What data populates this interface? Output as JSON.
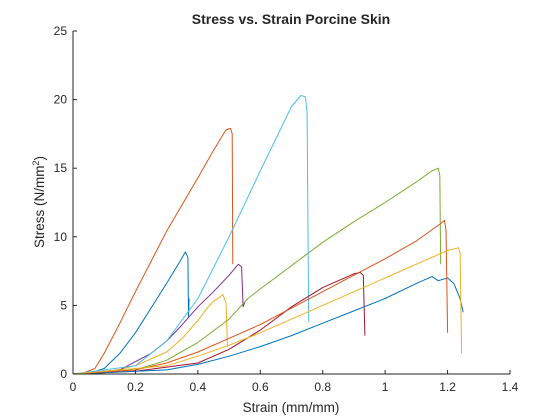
{
  "chart_data": {
    "type": "line",
    "title": "Stress vs. Strain Porcine Skin",
    "xlabel": "Strain (mm/mm)",
    "ylabel": "Stress (N/mm²)",
    "ylabel_parts": {
      "base": "Stress (N/mm",
      "sup": "2",
      "tail": ")"
    },
    "xlim": [
      0,
      1.4
    ],
    "ylim": [
      0,
      25
    ],
    "x_ticks": [
      "0",
      "0.2",
      "0.4",
      "0.6",
      "0.8",
      "1",
      "1.2",
      "1.4"
    ],
    "y_ticks": [
      "0",
      "5",
      "10",
      "15",
      "20",
      "25"
    ],
    "grid": false,
    "series": [
      {
        "color": "#0072BD",
        "points": [
          [
            0,
            0
          ],
          [
            0.05,
            0.05
          ],
          [
            0.1,
            0.4
          ],
          [
            0.15,
            1.5
          ],
          [
            0.2,
            3.0
          ],
          [
            0.25,
            4.8
          ],
          [
            0.3,
            6.6
          ],
          [
            0.34,
            8.1
          ],
          [
            0.36,
            8.9
          ],
          [
            0.368,
            8.5
          ],
          [
            0.37,
            4.2
          ],
          [
            0.372,
            5.5
          ]
        ]
      },
      {
        "color": "#D95319",
        "points": [
          [
            0,
            0
          ],
          [
            0.03,
            0.05
          ],
          [
            0.07,
            0.4
          ],
          [
            0.1,
            1.5
          ],
          [
            0.15,
            3.7
          ],
          [
            0.2,
            6.0
          ],
          [
            0.3,
            10.4
          ],
          [
            0.4,
            14.3
          ],
          [
            0.45,
            16.3
          ],
          [
            0.49,
            17.8
          ],
          [
            0.505,
            17.9
          ],
          [
            0.51,
            17.5
          ],
          [
            0.512,
            8.0
          ]
        ]
      },
      {
        "color": "#EDB120",
        "points": [
          [
            0,
            0
          ],
          [
            0.1,
            0.1
          ],
          [
            0.2,
            0.6
          ],
          [
            0.3,
            1.6
          ],
          [
            0.35,
            2.6
          ],
          [
            0.4,
            3.9
          ],
          [
            0.43,
            4.8
          ],
          [
            0.45,
            5.3
          ],
          [
            0.47,
            5.6
          ],
          [
            0.48,
            5.8
          ],
          [
            0.49,
            5.2
          ],
          [
            0.495,
            2.0
          ]
        ]
      },
      {
        "color": "#7E2F8E",
        "points": [
          [
            0,
            0
          ],
          [
            0.15,
            0.3
          ],
          [
            0.25,
            1.5
          ],
          [
            0.3,
            2.4
          ],
          [
            0.35,
            3.6
          ],
          [
            0.4,
            4.9
          ],
          [
            0.45,
            6.0
          ],
          [
            0.5,
            7.2
          ],
          [
            0.53,
            8.0
          ],
          [
            0.54,
            7.8
          ],
          [
            0.545,
            4.9
          ],
          [
            0.55,
            5.2
          ]
        ]
      },
      {
        "color": "#77AC30",
        "points": [
          [
            0,
            0
          ],
          [
            0.2,
            0.3
          ],
          [
            0.3,
            1.0
          ],
          [
            0.4,
            2.3
          ],
          [
            0.5,
            4.0
          ],
          [
            0.56,
            5.5
          ],
          [
            0.6,
            6.2
          ],
          [
            0.7,
            7.9
          ],
          [
            0.8,
            9.6
          ],
          [
            0.9,
            11.1
          ],
          [
            1.0,
            12.5
          ],
          [
            1.1,
            14.0
          ],
          [
            1.15,
            14.8
          ],
          [
            1.17,
            15.0
          ],
          [
            1.175,
            14.5
          ],
          [
            1.178,
            8.0
          ]
        ]
      },
      {
        "color": "#4DBEEE",
        "points": [
          [
            0,
            0
          ],
          [
            0.2,
            0.6
          ],
          [
            0.3,
            2.4
          ],
          [
            0.4,
            5.5
          ],
          [
            0.5,
            10.0
          ],
          [
            0.6,
            14.8
          ],
          [
            0.7,
            19.5
          ],
          [
            0.73,
            20.3
          ],
          [
            0.745,
            20.2
          ],
          [
            0.75,
            19.0
          ],
          [
            0.755,
            3.8
          ]
        ]
      },
      {
        "color": "#A2142F",
        "points": [
          [
            0,
            0
          ],
          [
            0.2,
            0.2
          ],
          [
            0.4,
            0.8
          ],
          [
            0.5,
            1.8
          ],
          [
            0.6,
            3.2
          ],
          [
            0.7,
            4.9
          ],
          [
            0.8,
            6.3
          ],
          [
            0.9,
            7.3
          ],
          [
            0.92,
            7.4
          ],
          [
            0.93,
            7.2
          ],
          [
            0.935,
            2.8
          ]
        ]
      },
      {
        "color": "#0072BD",
        "points": [
          [
            0,
            0
          ],
          [
            0.3,
            0.3
          ],
          [
            0.4,
            0.7
          ],
          [
            0.5,
            1.3
          ],
          [
            0.6,
            2.0
          ],
          [
            0.7,
            2.8
          ],
          [
            0.8,
            3.7
          ],
          [
            0.9,
            4.6
          ],
          [
            1.0,
            5.5
          ],
          [
            1.1,
            6.6
          ],
          [
            1.15,
            7.1
          ],
          [
            1.17,
            6.8
          ],
          [
            1.2,
            7.0
          ],
          [
            1.22,
            6.6
          ],
          [
            1.24,
            5.5
          ],
          [
            1.25,
            4.5
          ]
        ]
      },
      {
        "color": "#D95319",
        "points": [
          [
            0,
            0
          ],
          [
            0.2,
            0.3
          ],
          [
            0.3,
            0.8
          ],
          [
            0.4,
            1.6
          ],
          [
            0.5,
            2.6
          ],
          [
            0.6,
            3.6
          ],
          [
            0.7,
            4.8
          ],
          [
            0.8,
            6.0
          ],
          [
            0.9,
            7.2
          ],
          [
            1.0,
            8.4
          ],
          [
            1.1,
            9.7
          ],
          [
            1.18,
            11.0
          ],
          [
            1.19,
            11.2
          ],
          [
            1.195,
            10.5
          ],
          [
            1.2,
            3.0
          ]
        ]
      },
      {
        "color": "#EDB120",
        "points": [
          [
            0,
            0
          ],
          [
            0.3,
            0.6
          ],
          [
            0.4,
            1.3
          ],
          [
            0.5,
            2.1
          ],
          [
            0.6,
            3.0
          ],
          [
            0.7,
            4.0
          ],
          [
            0.8,
            5.0
          ],
          [
            0.9,
            6.0
          ],
          [
            1.0,
            7.0
          ],
          [
            1.1,
            8.0
          ],
          [
            1.2,
            9.0
          ],
          [
            1.235,
            9.2
          ],
          [
            1.24,
            8.8
          ],
          [
            1.245,
            1.5
          ]
        ]
      }
    ]
  }
}
